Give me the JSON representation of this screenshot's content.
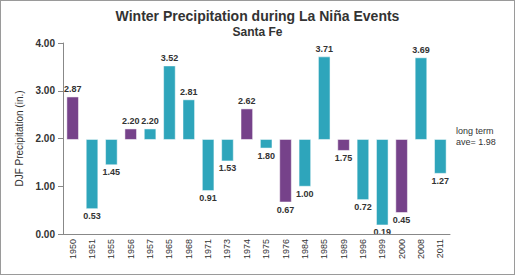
{
  "chart_data": {
    "type": "bar",
    "title": "Winter Precipitation during La Niña Events",
    "subtitle": "Santa Fe",
    "y_label": "DJF Precipitation (in.)",
    "categories": [
      "1950",
      "1951",
      "1955",
      "1956",
      "1957",
      "1965",
      "1968",
      "1971",
      "1973",
      "1974",
      "1975",
      "1976",
      "1984",
      "1985",
      "1989",
      "1996",
      "1999",
      "2000",
      "2008",
      "2011"
    ],
    "values": [
      2.87,
      0.53,
      1.45,
      2.2,
      2.2,
      3.52,
      2.81,
      0.91,
      1.53,
      2.62,
      1.8,
      0.67,
      1.0,
      3.71,
      1.75,
      0.72,
      0.19,
      0.45,
      3.69,
      1.27
    ],
    "value_labels": [
      "2.87",
      "0.53",
      "1.45",
      "2.20",
      "2.20",
      "3.52",
      "2.81",
      "0.91",
      "1.53",
      "2.62",
      "1.80",
      "0.67",
      "1.00",
      "3.71",
      "1.75",
      "0.72",
      "0.19",
      "0.45",
      "3.69",
      "1.27"
    ],
    "colors": [
      "#76428a",
      "#2ea5bb",
      "#2ea5bb",
      "#76428a",
      "#2ea5bb",
      "#2ea5bb",
      "#2ea5bb",
      "#2ea5bb",
      "#2ea5bb",
      "#76428a",
      "#2ea5bb",
      "#76428a",
      "#2ea5bb",
      "#2ea5bb",
      "#76428a",
      "#2ea5bb",
      "#2ea5bb",
      "#76428a",
      "#2ea5bb",
      "#2ea5bb"
    ],
    "baseline": {
      "value": 1.98,
      "label": "long term ave= 1.98"
    },
    "ylim": [
      0,
      4
    ],
    "yticks": [
      {
        "value": 0,
        "label": "0.00"
      },
      {
        "value": 1,
        "label": "1.00"
      },
      {
        "value": 2,
        "label": "2.00"
      },
      {
        "value": 3,
        "label": "3.00"
      },
      {
        "value": 4,
        "label": "4.00"
      }
    ],
    "grid": false,
    "data_labels": true
  }
}
